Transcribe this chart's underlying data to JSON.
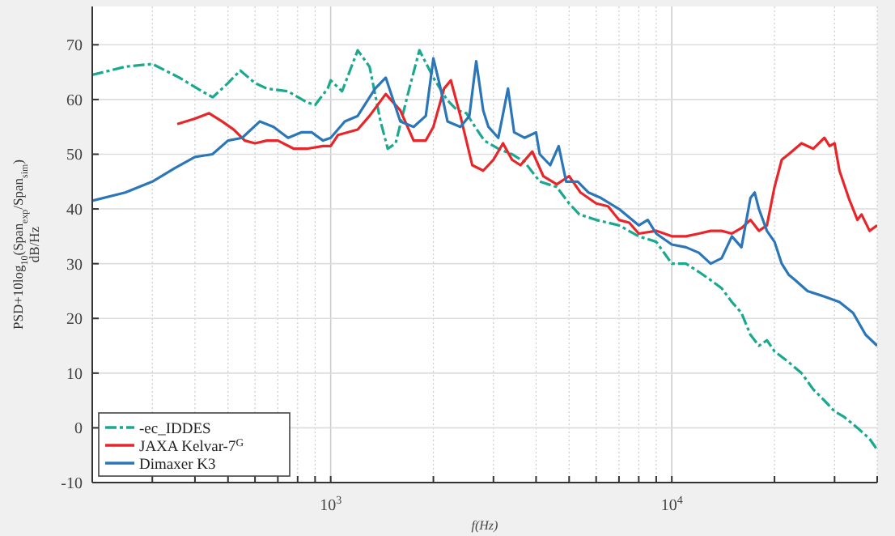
{
  "chart_data": {
    "type": "line",
    "xlabel": "f(Hz)",
    "ylabel": "PSD+10log$_{10}$(Span$_{exp}$/Span$_{sim}$)\ndB/Hz",
    "log": "x",
    "grid": true,
    "legend": "bottom left",
    "xlim": [
      200,
      40000
    ],
    "ylim": [
      -10,
      77
    ],
    "xticks": [
      {
        "value": 200,
        "label": null
      },
      {
        "value": 300,
        "label": null
      },
      {
        "value": 400,
        "label": null
      },
      {
        "value": 500,
        "label": null
      },
      {
        "value": 600,
        "label": null
      },
      {
        "value": 700,
        "label": null
      },
      {
        "value": 800,
        "label": null
      },
      {
        "value": 900,
        "label": null
      },
      {
        "value": 1000,
        "label": "10$^{3}$"
      },
      {
        "value": 2000,
        "label": null
      },
      {
        "value": 3000,
        "label": null
      },
      {
        "value": 4000,
        "label": null
      },
      {
        "value": 5000,
        "label": null
      },
      {
        "value": 6000,
        "label": null
      },
      {
        "value": 7000,
        "label": null
      },
      {
        "value": 8000,
        "label": null
      },
      {
        "value": 9000,
        "label": null
      },
      {
        "value": 10000,
        "label": "10$^{4}$"
      },
      {
        "value": 20000,
        "label": null
      },
      {
        "value": 30000,
        "label": null
      },
      {
        "value": 40000,
        "label": null
      }
    ],
    "yticks": [
      -10,
      0,
      10,
      20,
      30,
      40,
      50,
      60,
      70
    ],
    "series": [
      {
        "name": "-ec_IDDES",
        "color": "#1aa88f",
        "line_style": "dashed",
        "x": [
          200,
          250,
          300,
          360,
          420,
          451,
          500,
          543,
          600,
          650,
          750,
          850,
          900,
          980,
          1000,
          1080,
          1200,
          1300,
          1400,
          1470,
          1550,
          1700,
          1820,
          2000,
          2190,
          2350,
          2500,
          2650,
          2820,
          3100,
          3400,
          3700,
          4100,
          4600,
          5000,
          5360,
          6000,
          7000,
          8000,
          9000,
          10000,
          11000,
          12000,
          13000,
          14000,
          15000,
          16000,
          17000,
          18000,
          19000,
          20000,
          22000,
          24000,
          26000,
          28000,
          30000,
          32000,
          35000,
          38000,
          40000
        ],
        "values": [
          64.5,
          66,
          66.5,
          64,
          61.5,
          60.4,
          63,
          65.3,
          63,
          62,
          61.5,
          59.5,
          59,
          62,
          63.5,
          61.5,
          69,
          66,
          56,
          51,
          52,
          62,
          69,
          64,
          60,
          58,
          57.5,
          55,
          52.5,
          51,
          50,
          48.6,
          45,
          44,
          41,
          39,
          38,
          37,
          35,
          34,
          30,
          30,
          28.5,
          27,
          25.5,
          23,
          21,
          17,
          15,
          16,
          14,
          12,
          10,
          7,
          5,
          3,
          2,
          0,
          -2,
          -4
        ]
      },
      {
        "name": "JAXA Kelvar-7$^{G}$",
        "color": "#e8262a",
        "line_style": "solid",
        "x": [
          355,
          400,
          440,
          480,
          520,
          560,
          600,
          650,
          700,
          780,
          850,
          950,
          1000,
          1050,
          1200,
          1300,
          1450,
          1600,
          1750,
          1900,
          2000,
          2150,
          2250,
          2400,
          2600,
          2800,
          3000,
          3200,
          3400,
          3600,
          3900,
          4200,
          4600,
          5000,
          5400,
          6000,
          6500,
          7000,
          7500,
          8000,
          9000,
          10000,
          11000,
          12000,
          13000,
          14000,
          15000,
          16000,
          17000,
          18000,
          19000,
          20000,
          21000,
          22000,
          24000,
          26000,
          28000,
          29000,
          30000,
          31000,
          33000,
          35000,
          36000,
          38000,
          40000
        ],
        "values": [
          55.5,
          56.5,
          57.5,
          56,
          54.5,
          52.5,
          52,
          52.5,
          52.5,
          51,
          51,
          51.5,
          51.5,
          53.5,
          54.5,
          57,
          61,
          58,
          52.5,
          52.5,
          55,
          62,
          63.5,
          57,
          48,
          47,
          49,
          52,
          49,
          48,
          50.5,
          46,
          44.5,
          46,
          43,
          41,
          40.5,
          38,
          37.5,
          35.5,
          36,
          35,
          35,
          35.5,
          36,
          36,
          35.5,
          36.5,
          38,
          36,
          37,
          44,
          49,
          50,
          52,
          51,
          53,
          51.5,
          52,
          47,
          42,
          38,
          39,
          36,
          37
        ]
      },
      {
        "name": "Dimaxer K3",
        "color": "#2b76b9",
        "line_style": "solid",
        "x": [
          200,
          250,
          300,
          350,
          400,
          450,
          500,
          550,
          620,
          680,
          750,
          820,
          880,
          950,
          1000,
          1100,
          1200,
          1350,
          1450,
          1600,
          1750,
          1900,
          2000,
          2100,
          2200,
          2400,
          2550,
          2670,
          2800,
          2900,
          3100,
          3310,
          3450,
          3700,
          4000,
          4100,
          4400,
          4660,
          4900,
          5300,
          5700,
          6200,
          7000,
          8000,
          8500,
          9000,
          10000,
          11000,
          12000,
          13000,
          14000,
          15000,
          16000,
          17000,
          17500,
          18000,
          19000,
          20000,
          21000,
          22000,
          23000,
          25000,
          28000,
          31000,
          34000,
          37000,
          40000
        ],
        "values": [
          41.5,
          43,
          45,
          47.5,
          49.5,
          50,
          52.5,
          53,
          56,
          55,
          53,
          54,
          54,
          52.5,
          53,
          56,
          57,
          62,
          64,
          56,
          55,
          57,
          67.5,
          62,
          56,
          55,
          57,
          67,
          58,
          55,
          53,
          62,
          54,
          53,
          54,
          50,
          48,
          51.5,
          45,
          45,
          43,
          42,
          40,
          37,
          38,
          35.5,
          33.5,
          33,
          32,
          30,
          31,
          35,
          33,
          42,
          43,
          40,
          36,
          34,
          30,
          28,
          27,
          25,
          24,
          23,
          21,
          17,
          15
        ]
      }
    ]
  }
}
